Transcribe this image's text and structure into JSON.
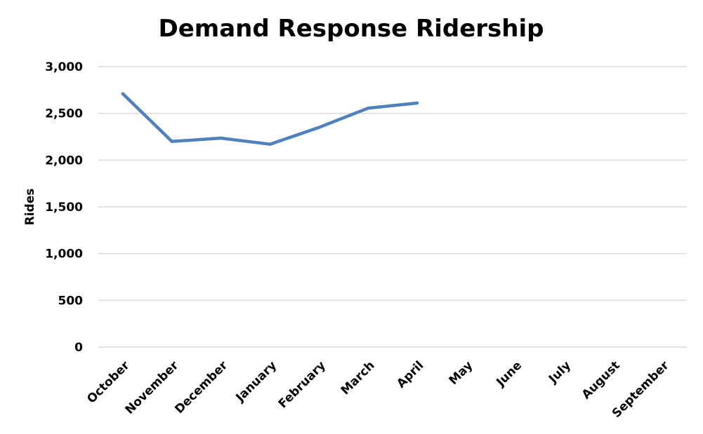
{
  "chart_data": {
    "type": "line",
    "title": "Demand Response Ridership",
    "xlabel": "",
    "ylabel": "Rides",
    "categories": [
      "October",
      "November",
      "December",
      "January",
      "February",
      "March",
      "April",
      "May",
      "June",
      "July",
      "August",
      "September"
    ],
    "series": [
      {
        "values": [
          2710,
          2200,
          2235,
          2170,
          2350,
          2555,
          2610,
          null,
          null,
          null,
          null,
          null
        ],
        "color": "#4f81bd"
      }
    ],
    "ylim": [
      0,
      3000
    ],
    "yticks": [
      0,
      500,
      1000,
      1500,
      2000,
      2500,
      3000
    ],
    "ytick_labels": [
      "0",
      "500",
      "1,000",
      "1,500",
      "2,000",
      "2,500",
      "3,000"
    ],
    "grid": true,
    "legend": "none"
  }
}
